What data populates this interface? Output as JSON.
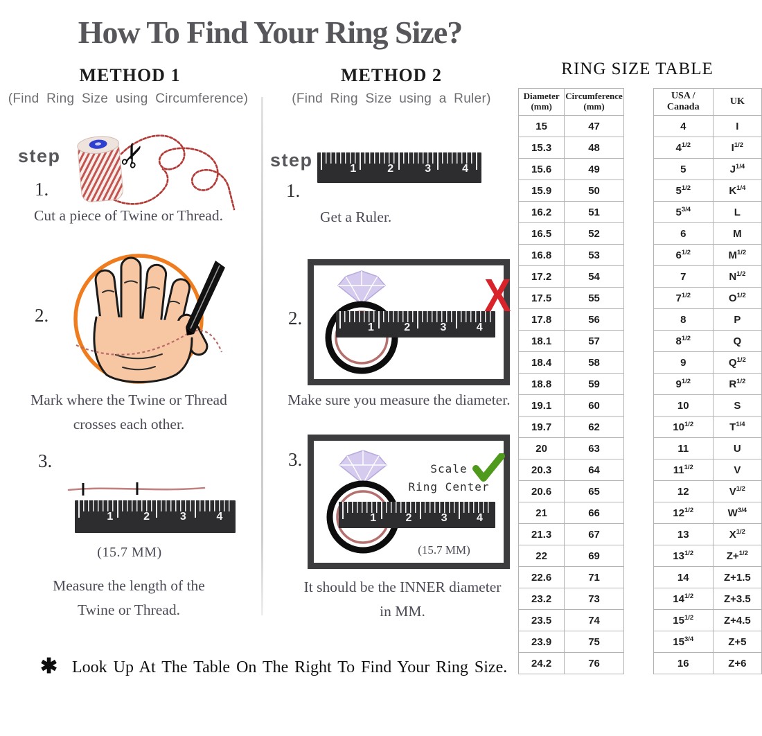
{
  "page": {
    "title": "How To Find Your Ring Size?",
    "footnote_symbol": "✱",
    "footnote": "Look Up  At The Table On The Right To Find Your Ring Size."
  },
  "method1": {
    "heading": "METHOD 1",
    "subtitle": "(Find Ring Size using Circumference)",
    "step_label": "step",
    "steps": [
      {
        "number": "1.",
        "caption": "Cut a piece of  Twine or Thread."
      },
      {
        "number": "2.",
        "caption": "Mark where the Twine or Thread\ncrosses each other."
      },
      {
        "number": "3.",
        "caption": "Measure the length of the\nTwine or Thread.",
        "measurement": "(15.7 MM)"
      }
    ]
  },
  "method2": {
    "heading": "METHOD 2",
    "subtitle": "(Find Ring Size using a Ruler)",
    "step_label": "step",
    "steps": [
      {
        "number": "1.",
        "caption": "Get a Ruler."
      },
      {
        "number": "2.",
        "caption": "Make sure you measure the diameter.",
        "wrong_mark": "X"
      },
      {
        "number": "3.",
        "caption": "It should be the INNER diameter\nin MM.",
        "annotation": "Scale\nRing Center",
        "measurement": "(15.7 MM)"
      }
    ]
  },
  "ruler_numbers": [
    "1",
    "2",
    "3",
    "4"
  ],
  "ring_size_table": {
    "heading": "RING SIZE TABLE",
    "headers": {
      "diameter": "Diameter\n(mm)",
      "circumference": "Circumference\n(mm)",
      "usa_canada": "USA /\nCanada",
      "uk": "UK"
    },
    "rows": [
      {
        "diameter_mm": "15",
        "circumference_mm": "47",
        "usa_canada": "4",
        "uk": "I"
      },
      {
        "diameter_mm": "15.3",
        "circumference_mm": "48",
        "usa_canada": "4^1/2",
        "uk": "I^1/2"
      },
      {
        "diameter_mm": "15.6",
        "circumference_mm": "49",
        "usa_canada": "5",
        "uk": "J^1/4"
      },
      {
        "diameter_mm": "15.9",
        "circumference_mm": "50",
        "usa_canada": "5^1/2",
        "uk": "K^1/4"
      },
      {
        "diameter_mm": "16.2",
        "circumference_mm": "51",
        "usa_canada": "5^3/4",
        "uk": "L"
      },
      {
        "diameter_mm": "16.5",
        "circumference_mm": "52",
        "usa_canada": "6",
        "uk": "M"
      },
      {
        "diameter_mm": "16.8",
        "circumference_mm": "53",
        "usa_canada": "6^1/2",
        "uk": "M^1/2"
      },
      {
        "diameter_mm": "17.2",
        "circumference_mm": "54",
        "usa_canada": "7",
        "uk": "N^1/2"
      },
      {
        "diameter_mm": "17.5",
        "circumference_mm": "55",
        "usa_canada": "7^1/2",
        "uk": "O^1/2"
      },
      {
        "diameter_mm": "17.8",
        "circumference_mm": "56",
        "usa_canada": "8",
        "uk": "P"
      },
      {
        "diameter_mm": "18.1",
        "circumference_mm": "57",
        "usa_canada": "8^1/2",
        "uk": "Q"
      },
      {
        "diameter_mm": "18.4",
        "circumference_mm": "58",
        "usa_canada": "9",
        "uk": "Q^1/2"
      },
      {
        "diameter_mm": "18.8",
        "circumference_mm": "59",
        "usa_canada": "9^1/2",
        "uk": "R^1/2"
      },
      {
        "diameter_mm": "19.1",
        "circumference_mm": "60",
        "usa_canada": "10",
        "uk": "S"
      },
      {
        "diameter_mm": "19.7",
        "circumference_mm": "62",
        "usa_canada": "10^1/2",
        "uk": "T^1/4"
      },
      {
        "diameter_mm": "20",
        "circumference_mm": "63",
        "usa_canada": "11",
        "uk": "U"
      },
      {
        "diameter_mm": "20.3",
        "circumference_mm": "64",
        "usa_canada": "11^1/2",
        "uk": "V"
      },
      {
        "diameter_mm": "20.6",
        "circumference_mm": "65",
        "usa_canada": "12",
        "uk": "V^1/2"
      },
      {
        "diameter_mm": "21",
        "circumference_mm": "66",
        "usa_canada": "12^1/2",
        "uk": "W^3/4"
      },
      {
        "diameter_mm": "21.3",
        "circumference_mm": "67",
        "usa_canada": "13",
        "uk": "X^1/2"
      },
      {
        "diameter_mm": "22",
        "circumference_mm": "69",
        "usa_canada": "13^1/2",
        "uk": "Z+^1/2"
      },
      {
        "diameter_mm": "22.6",
        "circumference_mm": "71",
        "usa_canada": "14",
        "uk": "Z+1.5"
      },
      {
        "diameter_mm": "23.2",
        "circumference_mm": "73",
        "usa_canada": "14^1/2",
        "uk": "Z+3.5"
      },
      {
        "diameter_mm": "23.5",
        "circumference_mm": "74",
        "usa_canada": "15^1/2",
        "uk": "Z+4.5"
      },
      {
        "diameter_mm": "23.9",
        "circumference_mm": "75",
        "usa_canada": "15^3/4",
        "uk": "Z+5"
      },
      {
        "diameter_mm": "24.2",
        "circumference_mm": "76",
        "usa_canada": "16",
        "uk": "Z+6"
      }
    ]
  },
  "colors": {
    "accent_orange": "#ef7d20",
    "error_red": "#d8232a",
    "success_green": "#4f9a1d",
    "ring_inner": "#b5706e",
    "diamond": "#d5cbee"
  }
}
